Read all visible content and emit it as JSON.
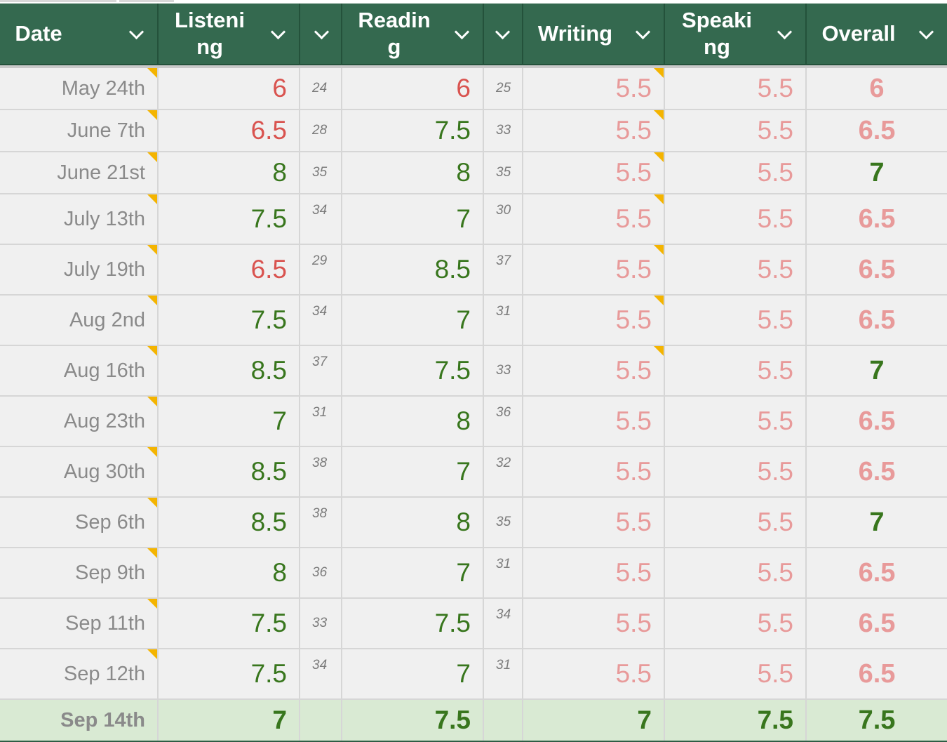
{
  "columns": [
    {
      "label": "Date"
    },
    {
      "label": "Listeni\nng"
    },
    {
      "label": ""
    },
    {
      "label": "Readin\ng"
    },
    {
      "label": ""
    },
    {
      "label": "Writing"
    },
    {
      "label": "Speaki\nng"
    },
    {
      "label": "Overall"
    }
  ],
  "colors": {
    "header_bg": "#34694f",
    "low_score": "#d9534f",
    "good_score": "#38761d",
    "target_band": "#e89a9a",
    "latest_row_bg": "#d9ead3",
    "note_marker": "#f4b400"
  },
  "rows": [
    {
      "date": "May 24th",
      "listening": "6",
      "listening_raw": "24",
      "reading": "6",
      "reading_raw": "25",
      "writing": "5.5",
      "speaking": "5.5",
      "overall": "6"
    },
    {
      "date": "June 7th",
      "listening": "6.5",
      "listening_raw": "28",
      "reading": "7.5",
      "reading_raw": "33",
      "writing": "5.5",
      "speaking": "5.5",
      "overall": "6.5"
    },
    {
      "date": "June 21st",
      "listening": "8",
      "listening_raw": "35",
      "reading": "8",
      "reading_raw": "35",
      "writing": "5.5",
      "speaking": "5.5",
      "overall": "7"
    },
    {
      "date": "July 13th",
      "listening": "7.5",
      "listening_raw": "34",
      "reading": "7",
      "reading_raw": "30",
      "writing": "5.5",
      "speaking": "5.5",
      "overall": "6.5"
    },
    {
      "date": "July 19th",
      "listening": "6.5",
      "listening_raw": "29",
      "reading": "8.5",
      "reading_raw": "37",
      "writing": "5.5",
      "speaking": "5.5",
      "overall": "6.5"
    },
    {
      "date": "Aug 2nd",
      "listening": "7.5",
      "listening_raw": "34",
      "reading": "7",
      "reading_raw": "31",
      "writing": "5.5",
      "speaking": "5.5",
      "overall": "6.5"
    },
    {
      "date": "Aug 16th",
      "listening": "8.5",
      "listening_raw": "37",
      "reading": "7.5",
      "reading_raw": "33",
      "writing": "5.5",
      "speaking": "5.5",
      "overall": "7"
    },
    {
      "date": "Aug 23th",
      "listening": "7",
      "listening_raw": "31",
      "reading": "8",
      "reading_raw": "36",
      "writing": "5.5",
      "speaking": "5.5",
      "overall": "6.5"
    },
    {
      "date": "Aug 30th",
      "listening": "8.5",
      "listening_raw": "38",
      "reading": "7",
      "reading_raw": "32",
      "writing": "5.5",
      "speaking": "5.5",
      "overall": "6.5"
    },
    {
      "date": "Sep 6th",
      "listening": "8.5",
      "listening_raw": "38",
      "reading": "8",
      "reading_raw": "35",
      "writing": "5.5",
      "speaking": "5.5",
      "overall": "7"
    },
    {
      "date": "Sep 9th",
      "listening": "8",
      "listening_raw": "36",
      "reading": "7",
      "reading_raw": "31",
      "writing": "5.5",
      "speaking": "5.5",
      "overall": "6.5"
    },
    {
      "date": "Sep 11th",
      "listening": "7.5",
      "listening_raw": "33",
      "reading": "7.5",
      "reading_raw": "34",
      "writing": "5.5",
      "speaking": "5.5",
      "overall": "6.5"
    },
    {
      "date": "Sep 12th",
      "listening": "7.5",
      "listening_raw": "34",
      "reading": "7",
      "reading_raw": "31",
      "writing": "5.5",
      "speaking": "5.5",
      "overall": "6.5"
    },
    {
      "date": "Sep 14th",
      "listening": "7",
      "listening_raw": "",
      "reading": "7.5",
      "reading_raw": "",
      "writing": "7",
      "speaking": "7.5",
      "overall": "7.5"
    }
  ]
}
